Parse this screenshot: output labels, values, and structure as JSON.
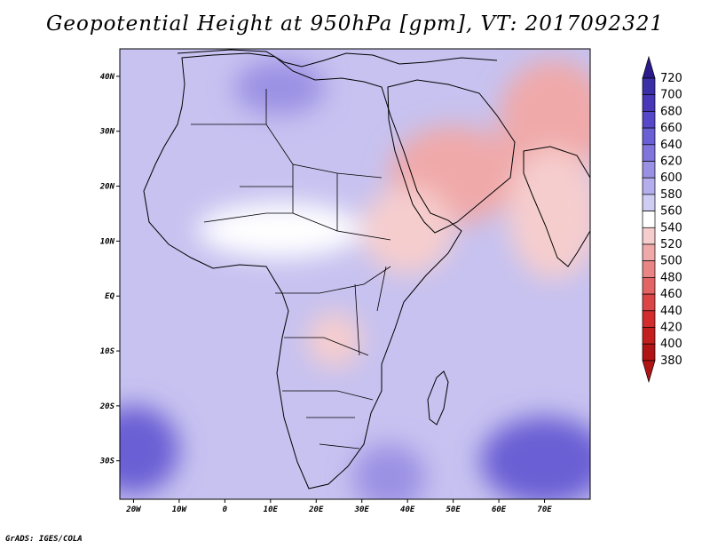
{
  "title": "Geopotential Height at 950hPa [gpm], VT: 2017092321",
  "credit": "GrADS: IGES/COLA",
  "map": {
    "lon_range": [
      -23,
      80
    ],
    "lat_range": [
      -37,
      45
    ],
    "lon_ticks": [
      {
        "value": -20,
        "label": "20W"
      },
      {
        "value": -10,
        "label": "10W"
      },
      {
        "value": 0,
        "label": "0"
      },
      {
        "value": 10,
        "label": "10E"
      },
      {
        "value": 20,
        "label": "20E"
      },
      {
        "value": 30,
        "label": "30E"
      },
      {
        "value": 40,
        "label": "40E"
      },
      {
        "value": 50,
        "label": "50E"
      },
      {
        "value": 60,
        "label": "60E"
      },
      {
        "value": 70,
        "label": "70E"
      }
    ],
    "lat_ticks": [
      {
        "value": 40,
        "label": "40N"
      },
      {
        "value": 30,
        "label": "30N"
      },
      {
        "value": 20,
        "label": "20N"
      },
      {
        "value": 10,
        "label": "10N"
      },
      {
        "value": 0,
        "label": "EQ"
      },
      {
        "value": -10,
        "label": "10S"
      },
      {
        "value": -20,
        "label": "20S"
      },
      {
        "value": -30,
        "label": "30S"
      }
    ],
    "regions": [
      {
        "name": "arabian-heat-low",
        "level": 515,
        "lon": 50,
        "lat": 22,
        "rx": 14,
        "ry": 9
      },
      {
        "name": "iran-heat-low",
        "level": 505,
        "lon": 72,
        "lat": 32,
        "rx": 12,
        "ry": 11
      },
      {
        "name": "horn-low",
        "level": 525,
        "lon": 40,
        "lat": 12,
        "rx": 10,
        "ry": 8
      },
      {
        "name": "congo-low",
        "level": 530,
        "lon": 24,
        "lat": -8,
        "rx": 6,
        "ry": 5
      },
      {
        "name": "india-low",
        "level": 535,
        "lon": 72,
        "lat": 15,
        "rx": 10,
        "ry": 12
      },
      {
        "name": "sahel-trough",
        "level": 545,
        "lon": 12,
        "lat": 12,
        "rx": 18,
        "ry": 5
      },
      {
        "name": "south-indian-high",
        "level": 650,
        "lon": 70,
        "lat": -30,
        "rx": 14,
        "ry": 8
      },
      {
        "name": "south-atlantic-high",
        "level": 650,
        "lon": -20,
        "lat": -28,
        "rx": 10,
        "ry": 8
      },
      {
        "name": "mediterranean-high",
        "level": 620,
        "lon": 12,
        "lat": 38,
        "rx": 10,
        "ry": 5
      },
      {
        "name": "agulhas-ridge",
        "level": 620,
        "lon": 36,
        "lat": -33,
        "rx": 8,
        "ry": 6
      }
    ]
  },
  "colorbar": {
    "levels": [
      720,
      700,
      680,
      660,
      640,
      620,
      600,
      580,
      560,
      540,
      520,
      500,
      480,
      460,
      440,
      420,
      400,
      380
    ],
    "colors": [
      "#2a1a8c",
      "#3b2fa8",
      "#4838b8",
      "#5648c8",
      "#6a5fd4",
      "#8174dc",
      "#9b91e4",
      "#b4aeec",
      "#d0cdf4",
      "#ffffff",
      "#f6cdcd",
      "#f0a9a9",
      "#e98585",
      "#e36464",
      "#dc4545",
      "#d22c2c",
      "#c41e1e",
      "#b01414"
    ]
  }
}
